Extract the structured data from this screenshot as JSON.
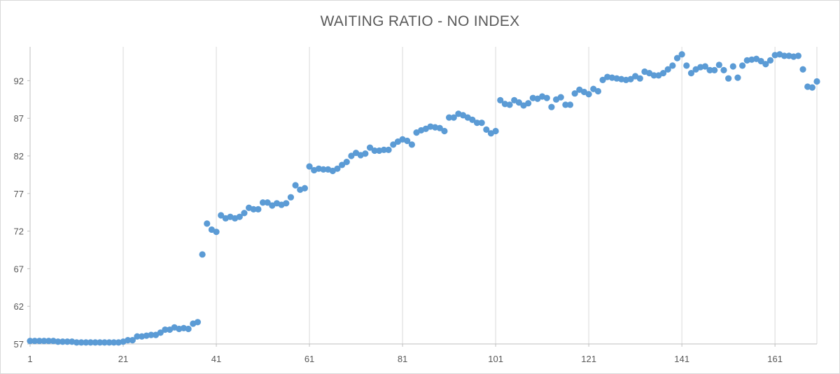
{
  "chart_data": {
    "type": "scatter",
    "title": "WAITING RATIO - NO INDEX",
    "xlabel": "",
    "ylabel": "",
    "xlim": [
      1,
      170
    ],
    "ylim": [
      57,
      96.5
    ],
    "x_ticks": [
      1,
      21,
      41,
      61,
      81,
      101,
      121,
      141,
      161
    ],
    "y_ticks": [
      57,
      62,
      67,
      72,
      77,
      82,
      87,
      92
    ],
    "grid": "vertical",
    "legend": "none",
    "marker_color": "#5b9bd5",
    "series": [
      {
        "x": [
          1,
          2,
          3,
          4,
          5,
          6,
          7,
          8,
          9,
          10,
          11,
          12,
          13,
          14,
          15,
          16,
          17,
          18,
          19,
          20,
          21,
          22,
          23,
          24,
          25,
          26,
          27,
          28,
          29,
          30,
          31,
          32,
          33,
          34,
          35,
          36,
          37,
          38,
          39,
          40,
          41,
          42,
          43,
          44,
          45,
          46,
          47,
          48,
          49,
          50,
          51,
          52,
          53,
          54,
          55,
          56,
          57,
          58,
          59,
          60,
          61,
          62,
          63,
          64,
          65,
          66,
          67,
          68,
          69,
          70,
          71,
          72,
          73,
          74,
          75,
          76,
          77,
          78,
          79,
          80,
          81,
          82,
          83,
          84,
          85,
          86,
          87,
          88,
          89,
          90,
          91,
          92,
          93,
          94,
          95,
          96,
          97,
          98,
          99,
          100,
          101,
          102,
          103,
          104,
          105,
          106,
          107,
          108,
          109,
          110,
          111,
          112,
          113,
          114,
          115,
          116,
          117,
          118,
          119,
          120,
          121,
          122,
          123,
          124,
          125,
          126,
          127,
          128,
          129,
          130,
          131,
          132,
          133,
          134,
          135,
          136,
          137,
          138,
          139,
          140,
          141,
          142,
          143,
          144,
          145,
          146,
          147,
          148,
          149,
          150,
          151,
          152,
          153,
          154,
          155,
          156,
          157,
          158,
          159,
          160,
          161,
          162,
          163,
          164,
          165,
          166,
          167,
          168,
          169,
          170
        ],
        "values": [
          57.4,
          57.4,
          57.4,
          57.4,
          57.4,
          57.4,
          57.3,
          57.3,
          57.3,
          57.3,
          57.2,
          57.2,
          57.2,
          57.2,
          57.2,
          57.2,
          57.2,
          57.2,
          57.2,
          57.2,
          57.3,
          57.5,
          57.5,
          58.0,
          58.0,
          58.1,
          58.2,
          58.2,
          58.5,
          58.9,
          58.9,
          59.2,
          59.0,
          59.1,
          59.0,
          59.7,
          59.9,
          68.9,
          73.0,
          72.2,
          71.9,
          74.1,
          73.7,
          73.9,
          73.7,
          73.9,
          74.4,
          75.1,
          74.9,
          74.9,
          75.8,
          75.8,
          75.4,
          75.7,
          75.5,
          75.7,
          76.5,
          78.1,
          77.5,
          77.7,
          80.6,
          80.1,
          80.3,
          80.2,
          80.2,
          80.0,
          80.3,
          80.8,
          81.2,
          82.0,
          82.4,
          82.1,
          82.3,
          83.1,
          82.7,
          82.7,
          82.8,
          82.8,
          83.5,
          83.9,
          84.2,
          84.0,
          83.5,
          85.1,
          85.4,
          85.6,
          85.9,
          85.8,
          85.7,
          85.3,
          87.1,
          87.1,
          87.6,
          87.4,
          87.1,
          86.8,
          86.4,
          86.4,
          85.5,
          85.0,
          85.3,
          89.4,
          88.9,
          88.8,
          89.4,
          89.1,
          88.7,
          89.0,
          89.7,
          89.6,
          89.9,
          89.7,
          88.5,
          89.5,
          89.8,
          88.8,
          88.8,
          90.3,
          90.8,
          90.5,
          90.2,
          90.9,
          90.6,
          92.1,
          92.5,
          92.4,
          92.3,
          92.2,
          92.1,
          92.2,
          92.6,
          92.3,
          93.2,
          93.0,
          92.7,
          92.7,
          93.0,
          93.5,
          94.0,
          95.0,
          95.5,
          94.0,
          93.0,
          93.5,
          93.8,
          93.9,
          93.4,
          93.4,
          94.1,
          93.4,
          92.3,
          93.9,
          92.4,
          94.0,
          94.7,
          94.8,
          94.9,
          94.6,
          94.2,
          94.7,
          95.4,
          95.5,
          95.3,
          95.3,
          95.2,
          95.3,
          93.5,
          91.2,
          91.1,
          91.9
        ]
      }
    ]
  }
}
